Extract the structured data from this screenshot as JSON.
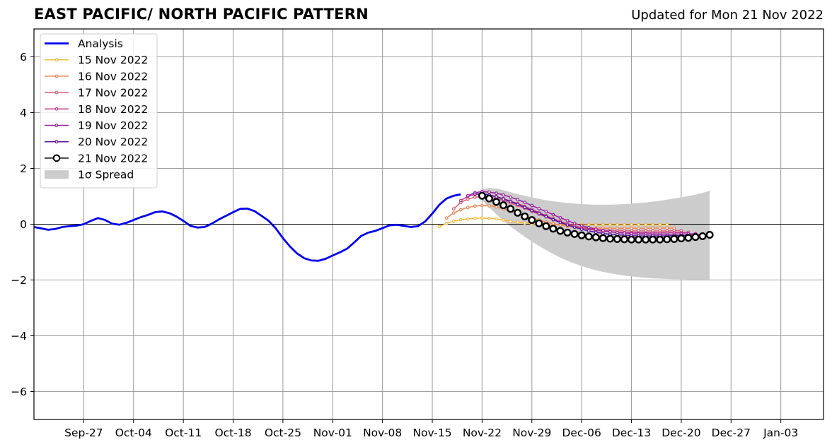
{
  "title": "EAST PACIFIC/ NORTH PACIFIC PATTERN",
  "subtitle": "Updated for Mon 21 Nov 2022",
  "chart_data": {
    "type": "line",
    "title": "EAST PACIFIC/ NORTH PACIFIC PATTERN",
    "subtitle": "Updated for Mon 21 Nov 2022",
    "xlabel": "",
    "ylabel": "",
    "x_range": [
      "2022-09-20",
      "2023-01-09"
    ],
    "ylim": [
      -7,
      7
    ],
    "grid": true,
    "legend_position": "upper-left",
    "x_tick_labels": [
      {
        "label": "Sep-27",
        "date": "2022-09-27"
      },
      {
        "label": "Oct-04",
        "date": "2022-10-04"
      },
      {
        "label": "Oct-11",
        "date": "2022-10-11"
      },
      {
        "label": "Oct-18",
        "date": "2022-10-18"
      },
      {
        "label": "Oct-25",
        "date": "2022-10-25"
      },
      {
        "label": "Nov-01",
        "date": "2022-11-01"
      },
      {
        "label": "Nov-08",
        "date": "2022-11-08"
      },
      {
        "label": "Nov-15",
        "date": "2022-11-15"
      },
      {
        "label": "Nov-22",
        "date": "2022-11-22"
      },
      {
        "label": "Nov-29",
        "date": "2022-11-29"
      },
      {
        "label": "Dec-06",
        "date": "2022-12-06"
      },
      {
        "label": "Dec-13",
        "date": "2022-12-13"
      },
      {
        "label": "Dec-20",
        "date": "2022-12-20"
      },
      {
        "label": "Dec-27",
        "date": "2022-12-27"
      },
      {
        "label": "Jan-03",
        "date": "2023-01-03"
      }
    ],
    "y_ticks": [
      -6,
      -4,
      -2,
      0,
      2,
      4,
      6
    ],
    "y_tick_labels": [
      "−6",
      "−4",
      "−2",
      "0",
      "2",
      "4",
      "6"
    ],
    "legend": [
      "Analysis",
      "15 Nov 2022",
      "16 Nov 2022",
      "17 Nov 2022",
      "18 Nov 2022",
      "19 Nov 2022",
      "20 Nov 2022",
      "21 Nov 2022",
      "1σ Spread"
    ],
    "analysis": {
      "name": "Analysis",
      "color": "#0000ee",
      "start": "2022-09-20",
      "values": [
        -0.1,
        -0.15,
        -0.2,
        -0.17,
        -0.1,
        -0.07,
        -0.05,
        0.0,
        0.12,
        0.22,
        0.15,
        0.02,
        -0.02,
        0.05,
        0.15,
        0.25,
        0.33,
        0.43,
        0.46,
        0.4,
        0.28,
        0.12,
        -0.06,
        -0.12,
        -0.1,
        0.02,
        0.17,
        0.3,
        0.43,
        0.55,
        0.56,
        0.47,
        0.3,
        0.12,
        -0.15,
        -0.5,
        -0.8,
        -1.05,
        -1.22,
        -1.3,
        -1.31,
        -1.24,
        -1.12,
        -1.01,
        -0.88,
        -0.66,
        -0.42,
        -0.3,
        -0.24,
        -0.14,
        -0.04,
        -0.02,
        -0.06,
        -0.1,
        -0.07,
        0.1,
        0.38,
        0.7,
        0.92,
        1.02,
        1.07
      ]
    },
    "forecasts": [
      {
        "name": "15 Nov 2022",
        "color": "#f7b93d",
        "start": "2022-11-16",
        "values": [
          -0.08,
          0.03,
          0.11,
          0.16,
          0.19,
          0.21,
          0.22,
          0.21,
          0.19,
          0.15,
          0.1,
          0.07,
          0.04,
          0.02,
          0.01,
          0.0,
          -0.01,
          -0.01,
          -0.02,
          -0.02,
          -0.02,
          -0.02,
          -0.02,
          -0.02,
          -0.02,
          -0.02,
          -0.02,
          -0.02,
          -0.02,
          -0.02,
          -0.02,
          -0.02,
          -0.02
        ]
      },
      {
        "name": "16 Nov 2022",
        "color": "#ec8650",
        "start": "2022-11-17",
        "values": [
          0.22,
          0.4,
          0.52,
          0.6,
          0.65,
          0.67,
          0.66,
          0.62,
          0.55,
          0.47,
          0.38,
          0.3,
          0.22,
          0.15,
          0.08,
          0.02,
          -0.03,
          -0.07,
          -0.1,
          -0.12,
          -0.13,
          -0.14,
          -0.14,
          -0.15,
          -0.15,
          -0.15,
          -0.15,
          -0.15,
          -0.14,
          -0.14,
          -0.14,
          -0.14,
          -0.14
        ]
      },
      {
        "name": "17 Nov 2022",
        "color": "#dc5c73",
        "start": "2022-11-18",
        "values": [
          0.55,
          0.78,
          0.9,
          0.97,
          0.99,
          0.97,
          0.92,
          0.85,
          0.76,
          0.67,
          0.57,
          0.46,
          0.36,
          0.26,
          0.16,
          0.07,
          0.0,
          -0.07,
          -0.12,
          -0.16,
          -0.19,
          -0.21,
          -0.22,
          -0.23,
          -0.23,
          -0.24,
          -0.24,
          -0.24,
          -0.24,
          -0.24,
          -0.24,
          -0.23,
          -0.23
        ]
      },
      {
        "name": "18 Nov 2022",
        "color": "#c23b8a",
        "start": "2022-11-19",
        "values": [
          0.85,
          1.0,
          1.07,
          1.08,
          1.05,
          0.99,
          0.92,
          0.83,
          0.74,
          0.64,
          0.53,
          0.42,
          0.31,
          0.2,
          0.1,
          0.02,
          -0.06,
          -0.13,
          -0.18,
          -0.22,
          -0.25,
          -0.27,
          -0.29,
          -0.3,
          -0.3,
          -0.31,
          -0.31,
          -0.31,
          -0.31,
          -0.3,
          -0.3,
          -0.3,
          -0.29
        ]
      },
      {
        "name": "19 Nov 2022",
        "color": "#9a1fa0",
        "start": "2022-11-20",
        "values": [
          1.02,
          1.13,
          1.17,
          1.15,
          1.11,
          1.05,
          0.97,
          0.88,
          0.78,
          0.67,
          0.56,
          0.45,
          0.34,
          0.23,
          0.13,
          0.03,
          -0.05,
          -0.12,
          -0.18,
          -0.23,
          -0.27,
          -0.3,
          -0.32,
          -0.34,
          -0.35,
          -0.35,
          -0.36,
          -0.36,
          -0.36,
          -0.36,
          -0.35,
          -0.35,
          -0.34
        ]
      },
      {
        "name": "20 Nov 2022",
        "color": "#5c0f9e",
        "start": "2022-11-21",
        "values": [
          1.08,
          1.1,
          1.05,
          0.98,
          0.9,
          0.81,
          0.71,
          0.6,
          0.49,
          0.38,
          0.27,
          0.16,
          0.06,
          -0.03,
          -0.11,
          -0.18,
          -0.24,
          -0.29,
          -0.33,
          -0.36,
          -0.38,
          -0.4,
          -0.41,
          -0.42,
          -0.42,
          -0.42,
          -0.42,
          -0.42,
          -0.41,
          -0.41,
          -0.4,
          -0.39,
          -0.38
        ]
      },
      {
        "name": "21 Nov 2022",
        "color": "#000000",
        "start": "2022-11-22",
        "values": [
          1.02,
          0.92,
          0.8,
          0.68,
          0.55,
          0.41,
          0.28,
          0.15,
          0.03,
          -0.07,
          -0.16,
          -0.24,
          -0.3,
          -0.35,
          -0.4,
          -0.44,
          -0.47,
          -0.5,
          -0.52,
          -0.53,
          -0.54,
          -0.55,
          -0.55,
          -0.55,
          -0.55,
          -0.55,
          -0.54,
          -0.53,
          -0.51,
          -0.49,
          -0.46,
          -0.43,
          -0.38
        ]
      }
    ],
    "spread": {
      "name": "1σ Spread",
      "color": "#cccccc",
      "start": "2022-11-22",
      "upper": [
        1.25,
        1.3,
        1.28,
        1.22,
        1.15,
        1.08,
        1.02,
        0.96,
        0.91,
        0.86,
        0.82,
        0.79,
        0.76,
        0.74,
        0.72,
        0.71,
        0.7,
        0.7,
        0.7,
        0.71,
        0.72,
        0.74,
        0.76,
        0.78,
        0.81,
        0.84,
        0.88,
        0.92,
        0.96,
        1.01,
        1.06,
        1.12,
        1.2
      ],
      "lower": [
        0.85,
        0.6,
        0.35,
        0.12,
        -0.08,
        -0.27,
        -0.45,
        -0.62,
        -0.78,
        -0.93,
        -1.07,
        -1.2,
        -1.31,
        -1.41,
        -1.5,
        -1.58,
        -1.65,
        -1.71,
        -1.76,
        -1.8,
        -1.84,
        -1.87,
        -1.9,
        -1.92,
        -1.94,
        -1.95,
        -1.96,
        -1.97,
        -1.97,
        -1.98,
        -1.98,
        -1.98,
        -1.98
      ]
    }
  }
}
